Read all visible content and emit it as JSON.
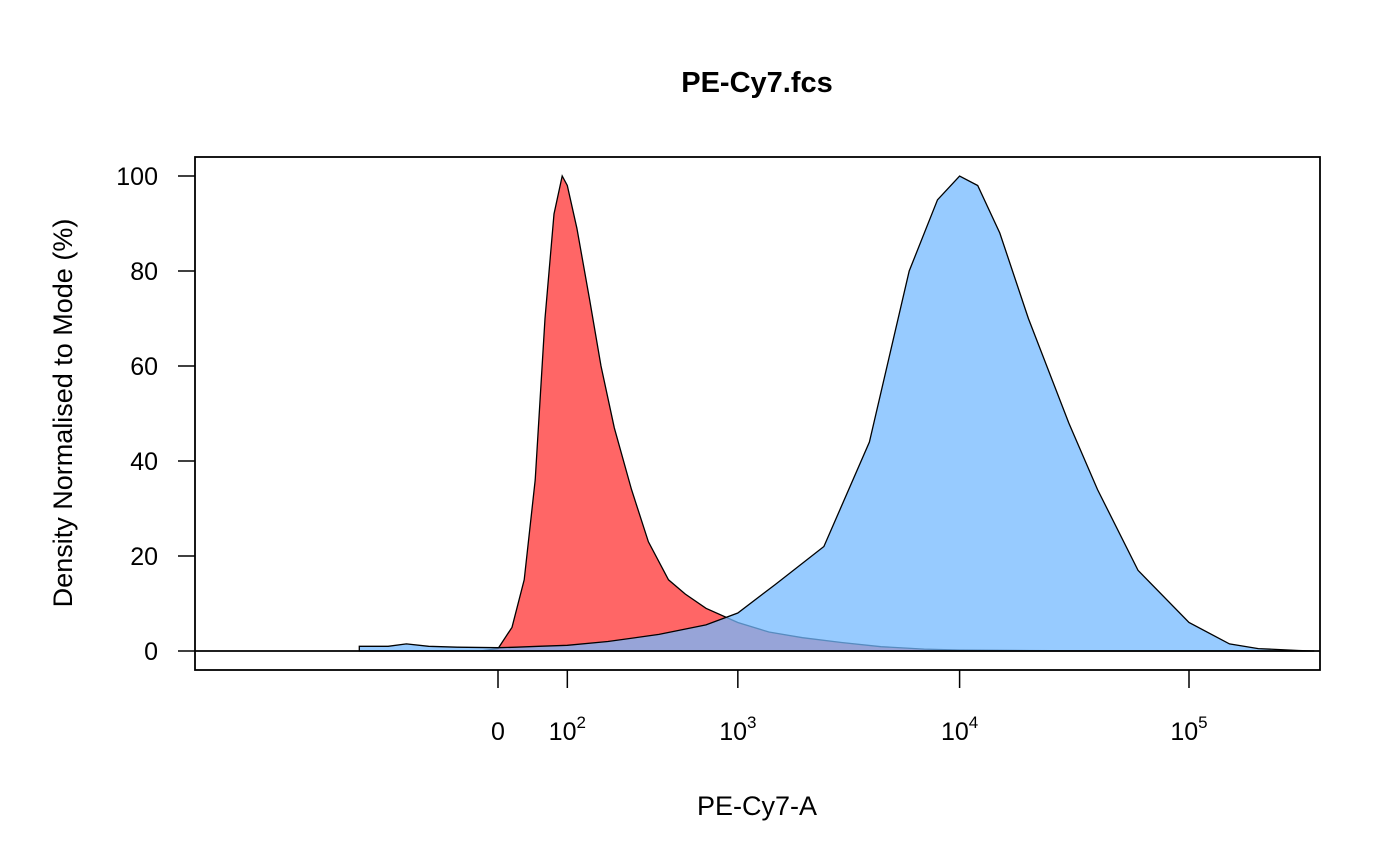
{
  "chart_data": {
    "type": "area",
    "title": "PE-Cy7.fcs",
    "xlabel": "PE-Cy7-A",
    "ylabel": "Density Normalised to Mode (%)",
    "x_scale": "logicle",
    "y_ticks": [
      "0",
      "20",
      "40",
      "60",
      "80",
      "100"
    ],
    "ylim": [
      -4,
      104
    ],
    "xlim": [
      -300,
      350000
    ],
    "x_ticks": [
      {
        "value": 0,
        "base": "0",
        "exp": ""
      },
      {
        "value": 100,
        "base": "10",
        "exp": "2"
      },
      {
        "value": 1000,
        "base": "10",
        "exp": "3"
      },
      {
        "value": 10000,
        "base": "10",
        "exp": "4"
      },
      {
        "value": 100000,
        "base": "10",
        "exp": "5"
      }
    ],
    "grid": false,
    "legend": false,
    "series": [
      {
        "color": "#ff6666",
        "x": [
          -300,
          -150,
          -60,
          -20,
          0,
          15,
          30,
          45,
          60,
          75,
          90,
          100,
          120,
          150,
          180,
          220,
          280,
          350,
          450,
          550,
          700,
          1000,
          1400,
          2000,
          3000,
          4500,
          7000,
          10000,
          20000,
          50000,
          100000,
          200000,
          350000
        ],
        "y": [
          0,
          0,
          0,
          0,
          0.5,
          5,
          15,
          36,
          70,
          92,
          100,
          98,
          89,
          74,
          60,
          47,
          34,
          23,
          15,
          12,
          9,
          6,
          4,
          2.8,
          1.8,
          0.9,
          0.4,
          0.2,
          0.1,
          0,
          0,
          0,
          0
        ]
      },
      {
        "color": "#74b9ff",
        "x": [
          -300,
          -200,
          -150,
          -100,
          -50,
          0,
          20,
          50,
          100,
          200,
          400,
          700,
          1000,
          1500,
          2500,
          4000,
          6000,
          8000,
          10000,
          12000,
          15000,
          20000,
          30000,
          40000,
          60000,
          100000,
          150000,
          200000,
          300000,
          350000
        ],
        "y": [
          1,
          1,
          1.5,
          1,
          0.8,
          0.7,
          0.8,
          1,
          1.2,
          2,
          3.5,
          5.5,
          8,
          14,
          22,
          44,
          80,
          95,
          100,
          98,
          88,
          70,
          48,
          34,
          17,
          6,
          1.5,
          0.5,
          0.1,
          0
        ]
      }
    ]
  }
}
